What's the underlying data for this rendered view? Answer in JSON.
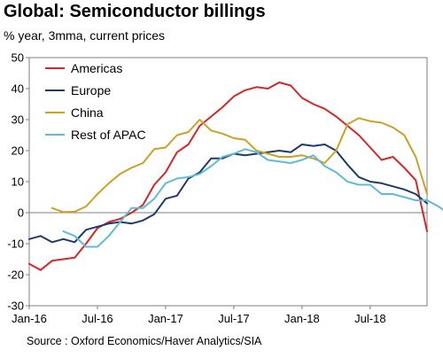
{
  "title": "Global: Semiconductor billings",
  "subtitle": "% year, 3mma, current prices",
  "source": "Source : Oxford Economics/Haver Analytics/SIA",
  "chart_data": {
    "type": "line",
    "title": "Global: Semiconductor billings",
    "subtitle": "% year, 3mma, current prices",
    "ylim": [
      -30,
      50
    ],
    "yticks": [
      -30,
      -20,
      -10,
      0,
      10,
      20,
      30,
      40,
      50
    ],
    "xlim": [
      "2016-01",
      "2018-12"
    ],
    "xticks": [
      {
        "label": "Jan-16",
        "month_index": 0
      },
      {
        "label": "Jul-16",
        "month_index": 6
      },
      {
        "label": "Jan-17",
        "month_index": 12
      },
      {
        "label": "Jul-17",
        "month_index": 18
      },
      {
        "label": "Jan-18",
        "month_index": 24
      },
      {
        "label": "Jul-18",
        "month_index": 30
      }
    ],
    "grid": false,
    "zero_line": true,
    "legend_position": "top-left",
    "series": [
      {
        "name": "Americas",
        "color": "#d62728",
        "start_month_index": 0,
        "values": [
          -16.5,
          -18.5,
          -15.5,
          -15,
          -14.5,
          -10,
          -5,
          -3,
          -2,
          0,
          2.5,
          9,
          13,
          19.5,
          22,
          28,
          31,
          34,
          37.5,
          39.5,
          40.5,
          40,
          42,
          41,
          37,
          35,
          33.5,
          31,
          28,
          25,
          21,
          17,
          18,
          14.5,
          10.5,
          -6
        ]
      },
      {
        "name": "Europe",
        "color": "#1f3a68",
        "start_month_index": 0,
        "values": [
          -8.5,
          -7.5,
          -9.5,
          -8.5,
          -9.5,
          -5.5,
          -4.5,
          -3.5,
          -3,
          -3.5,
          -2.5,
          -0.5,
          4.5,
          5.5,
          11,
          13,
          17.5,
          17.5,
          19,
          18.5,
          19,
          19.5,
          20,
          19.5,
          22,
          21.5,
          22,
          20,
          15.5,
          11.5,
          10,
          9.5,
          8.5,
          7.5,
          6,
          3
        ]
      },
      {
        "name": "China",
        "color": "#c9a227",
        "start_month_index": 2,
        "values": [
          1.5,
          0.2,
          0.3,
          2,
          6,
          9.5,
          12.5,
          14.5,
          16,
          20.5,
          21,
          25,
          26,
          30,
          26.5,
          25.5,
          24,
          23.5,
          20,
          19,
          18,
          18,
          18.5,
          17.5,
          16,
          20,
          28.5,
          30.5,
          29.5,
          29,
          27.5,
          25,
          18,
          6
        ]
      },
      {
        "name": "Rest of APAC",
        "color": "#5fbcd3",
        "start_month_index": 3,
        "values": [
          -6,
          -7.5,
          -11,
          -11,
          -7.5,
          -3,
          1.5,
          1.5,
          4.5,
          9.5,
          11,
          11.5,
          12.5,
          15,
          18,
          19,
          20.5,
          19.5,
          17,
          16.5,
          16,
          17,
          18.5,
          15,
          13,
          10,
          9,
          9,
          6,
          6,
          5,
          4,
          4,
          2,
          -0.5
        ]
      }
    ]
  }
}
